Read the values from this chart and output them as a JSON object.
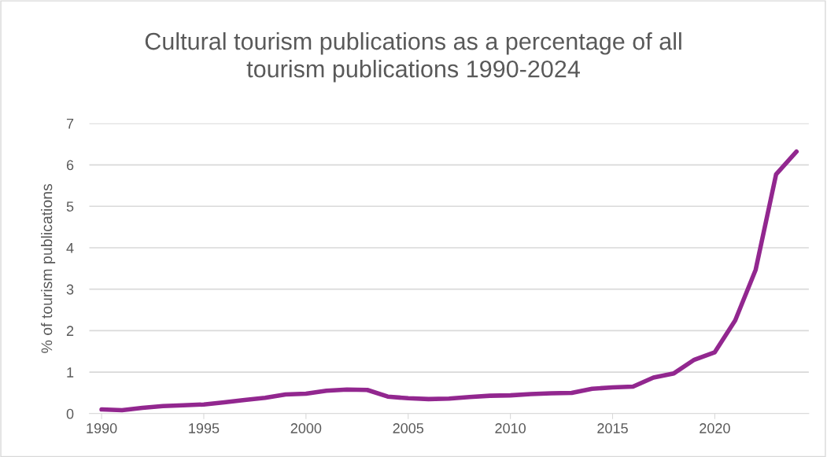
{
  "chart_data": {
    "type": "line",
    "title": "Cultural tourism publications as a percentage of all\ntourism publications 1990-2024",
    "ylabel": "% of tourism publications",
    "x": [
      1990,
      1991,
      1992,
      1993,
      1994,
      1995,
      1996,
      1997,
      1998,
      1999,
      2000,
      2001,
      2002,
      2003,
      2004,
      2005,
      2006,
      2007,
      2008,
      2009,
      2010,
      2011,
      2012,
      2013,
      2014,
      2015,
      2016,
      2017,
      2018,
      2019,
      2020,
      2021,
      2022,
      2023,
      2024
    ],
    "series": [
      {
        "color": "#92278f",
        "values": [
          0.1,
          0.08,
          0.14,
          0.18,
          0.2,
          0.22,
          0.27,
          0.33,
          0.38,
          0.46,
          0.48,
          0.55,
          0.58,
          0.57,
          0.41,
          0.37,
          0.35,
          0.36,
          0.4,
          0.43,
          0.44,
          0.47,
          0.49,
          0.5,
          0.6,
          0.63,
          0.65,
          0.87,
          0.97,
          1.3,
          1.48,
          2.25,
          3.47,
          5.77,
          6.32
        ]
      }
    ],
    "xlim": [
      1989.4,
      2024.6
    ],
    "xticks": [
      1990,
      1995,
      2000,
      2005,
      2010,
      2015,
      2020
    ],
    "ylim": [
      0,
      7
    ],
    "yticks": [
      0,
      1,
      2,
      3,
      4,
      5,
      6,
      7
    ],
    "grid": "y",
    "marker": "none",
    "line_style": "solid"
  }
}
